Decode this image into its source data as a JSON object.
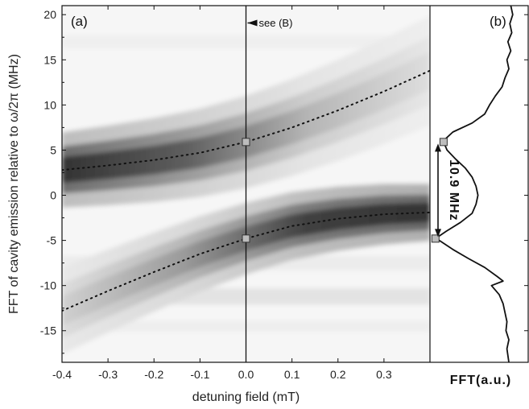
{
  "chart_data": [
    {
      "type": "heatmap",
      "panel_label": "(a)",
      "xlabel": "detuning field (mT)",
      "ylabel": "FFT of cavity emission relative to ω/2π (MHz)",
      "xlim": [
        -0.4,
        0.4
      ],
      "ylim": [
        -18.5,
        21
      ],
      "x_ticks": [
        -0.4,
        -0.3,
        -0.2,
        -0.1,
        0.0,
        0.1,
        0.2,
        0.3
      ],
      "x_tick_labels": [
        "-0.4",
        "-0.3",
        "-0.2",
        "-0.1",
        "0.0",
        "0.1",
        "0.2",
        "0.3"
      ],
      "y_ticks": [
        -15,
        -10,
        -5,
        0,
        5,
        10,
        15,
        20
      ],
      "y_tick_labels": [
        "-15",
        "-10",
        "-5",
        "0",
        "5",
        "10",
        "15",
        "20"
      ],
      "colormap": "grayscale (dark = high FFT amplitude)",
      "annotation": "see (B)",
      "vertical_line_x": 0.0,
      "upper_branch": {
        "x": [
          -0.4,
          -0.3,
          -0.2,
          -0.1,
          0.0,
          0.1,
          0.2,
          0.3,
          0.4
        ],
        "y": [
          2.8,
          3.3,
          3.9,
          4.7,
          5.9,
          7.5,
          9.4,
          11.5,
          13.8
        ]
      },
      "lower_branch": {
        "x": [
          -0.4,
          -0.3,
          -0.2,
          -0.1,
          0.0,
          0.1,
          0.2,
          0.3,
          0.4
        ],
        "y": [
          -12.8,
          -10.6,
          -8.5,
          -6.5,
          -4.8,
          -3.4,
          -2.6,
          -2.1,
          -1.9
        ]
      },
      "marked_points": [
        {
          "x": 0.0,
          "y": 5.9
        },
        {
          "x": 0.0,
          "y": -4.8
        }
      ]
    },
    {
      "type": "line",
      "panel_label": "(b)",
      "xlabel": "FFT(a.u.)",
      "ylim": [
        -18.5,
        21
      ],
      "y": [
        21,
        20,
        19,
        18,
        17,
        16,
        15,
        14,
        13,
        12,
        11,
        10,
        9,
        8,
        7,
        6,
        5,
        4,
        3,
        2,
        1,
        0,
        -1,
        -2,
        -3,
        -4,
        -4.8,
        -5,
        -6,
        -7,
        -8,
        -9,
        -9.5,
        -10,
        -10.5,
        -11,
        -12,
        -13,
        -14,
        -15,
        -16,
        -17,
        -18.5
      ],
      "fft": [
        0.82,
        0.84,
        0.81,
        0.83,
        0.79,
        0.82,
        0.78,
        0.8,
        0.76,
        0.73,
        0.66,
        0.6,
        0.55,
        0.42,
        0.22,
        0.12,
        0.16,
        0.25,
        0.35,
        0.42,
        0.46,
        0.48,
        0.46,
        0.42,
        0.3,
        0.15,
        0.04,
        0.08,
        0.22,
        0.38,
        0.55,
        0.68,
        0.74,
        0.62,
        0.66,
        0.7,
        0.74,
        0.76,
        0.78,
        0.77,
        0.8,
        0.78,
        0.8
      ],
      "peak_markers": [
        {
          "y": 5.9
        },
        {
          "y": -4.8
        }
      ],
      "splitting_label": "10.9 MHz"
    }
  ]
}
